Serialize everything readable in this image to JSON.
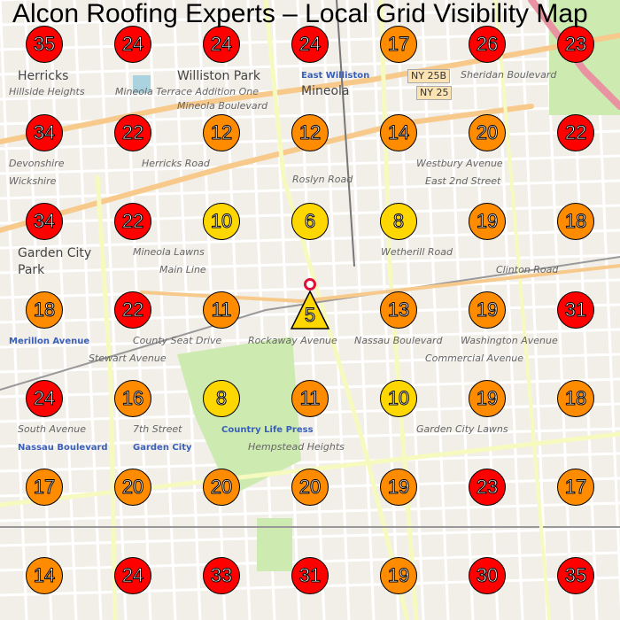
{
  "title": "Alcon Roofing Experts – Local Grid Visibility Map",
  "colors": {
    "high_rank": "#ffd700",
    "mid_rank": "#ff8c00",
    "low_rank": "#ff0000",
    "map_bg": "#f2efe9",
    "road": "#f7c98b",
    "minor_road": "#ffffff",
    "park": "#cdebb0"
  },
  "legend_rule": "rank<=10 yellow, 11-20 orange, >20 red",
  "business_marker": {
    "rank": 5,
    "shape": "triangle",
    "pin_icon": "location-pin-icon"
  },
  "grid": [
    [
      35,
      24,
      24,
      24,
      17,
      26,
      23
    ],
    [
      34,
      22,
      12,
      12,
      14,
      20,
      22
    ],
    [
      34,
      22,
      10,
      6,
      8,
      19,
      18
    ],
    [
      18,
      22,
      11,
      5,
      13,
      19,
      31
    ],
    [
      24,
      16,
      8,
      11,
      10,
      19,
      18
    ],
    [
      17,
      20,
      20,
      20,
      19,
      23,
      17
    ],
    [
      14,
      24,
      33,
      31,
      19,
      30,
      35
    ]
  ],
  "map_labels": [
    {
      "text": "Herricks",
      "kind": "place"
    },
    {
      "text": "Williston Park",
      "kind": "place"
    },
    {
      "text": "East Williston",
      "kind": "station"
    },
    {
      "text": "Mineola",
      "kind": "place"
    },
    {
      "text": "Garden City",
      "kind": "place"
    },
    {
      "text": "Park",
      "kind": "place"
    },
    {
      "text": "Hillside Heights",
      "kind": "small"
    },
    {
      "text": "Devonshire",
      "kind": "small"
    },
    {
      "text": "Wickshire",
      "kind": "small"
    },
    {
      "text": "Mineola Lawns",
      "kind": "small"
    },
    {
      "text": "Merillon Avenue",
      "kind": "station"
    },
    {
      "text": "Nassau Boulevard",
      "kind": "station"
    },
    {
      "text": "Garden City",
      "kind": "station"
    },
    {
      "text": "Country Life Press",
      "kind": "station"
    },
    {
      "text": "Garden City Lawns",
      "kind": "small"
    },
    {
      "text": "Hempstead Heights",
      "kind": "small"
    },
    {
      "text": "Mineola Terrace Addition One",
      "kind": "small"
    },
    {
      "text": "NY 25B",
      "kind": "shield"
    },
    {
      "text": "NY 25",
      "kind": "shield"
    },
    {
      "text": "Westbury Avenue",
      "kind": "small"
    },
    {
      "text": "East 2nd Street",
      "kind": "small"
    },
    {
      "text": "Stewart Avenue",
      "kind": "small"
    },
    {
      "text": "South Avenue",
      "kind": "small"
    },
    {
      "text": "7th Street",
      "kind": "small"
    },
    {
      "text": "Commercial Avenue",
      "kind": "small"
    },
    {
      "text": "Main Line",
      "kind": "small"
    },
    {
      "text": "Mineola Boulevard",
      "kind": "small"
    },
    {
      "text": "Roslyn Road",
      "kind": "small"
    },
    {
      "text": "Herricks Road",
      "kind": "small"
    },
    {
      "text": "Nassau Boulevard",
      "kind": "small"
    },
    {
      "text": "Rockaway Avenue",
      "kind": "small"
    },
    {
      "text": "County Seat Drive",
      "kind": "small"
    },
    {
      "text": "Washington Avenue",
      "kind": "small"
    },
    {
      "text": "Clinton Road",
      "kind": "small"
    },
    {
      "text": "Wetherill Road",
      "kind": "small"
    },
    {
      "text": "Sheridan Boulevard",
      "kind": "small"
    }
  ]
}
